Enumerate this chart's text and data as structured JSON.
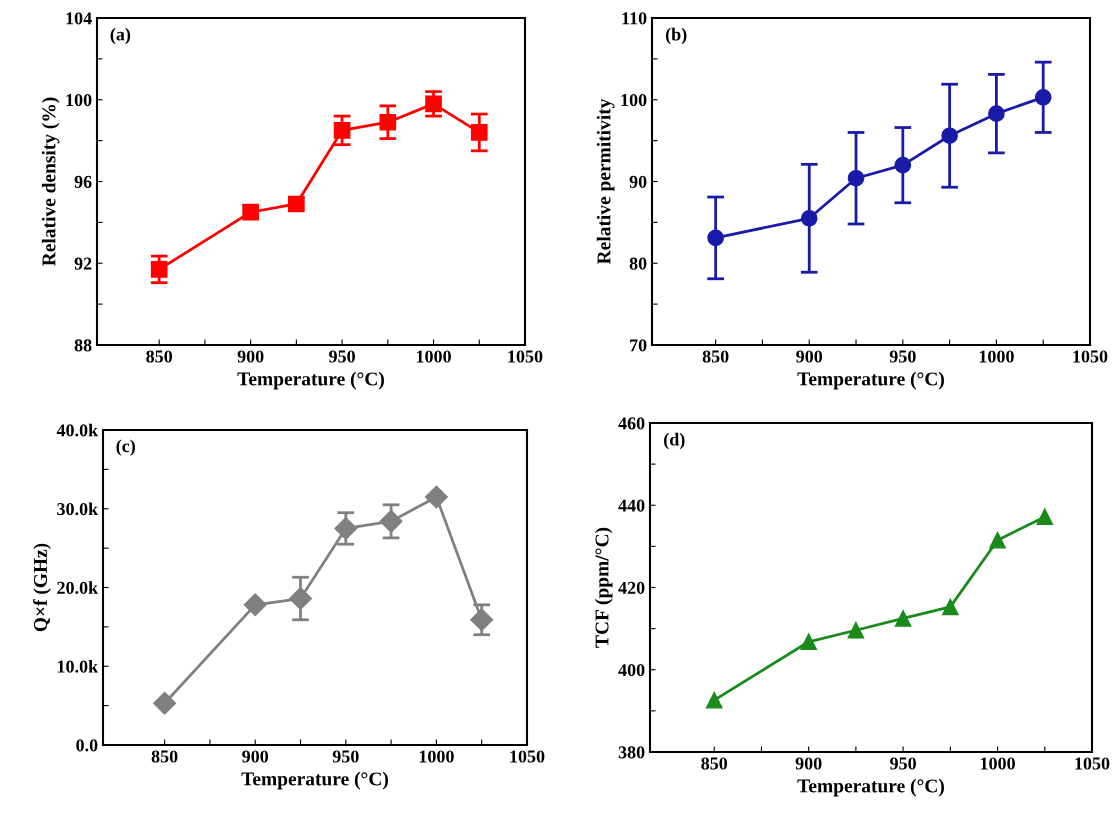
{
  "chart_data": [
    {
      "type": "line",
      "annotations": [
        "(a)"
      ],
      "xlabel": "Temperature (°C)",
      "ylabel": "Relative density (%)",
      "x": [
        850,
        900,
        925,
        950,
        975,
        1000,
        1025
      ],
      "marker": "square",
      "grid": false,
      "series": [
        {
          "color": "#ff0000",
          "values": [
            91.7,
            94.5,
            94.9,
            98.5,
            98.9,
            99.8,
            98.4
          ],
          "errors": [
            0.65,
            null,
            null,
            0.7,
            0.8,
            0.6,
            0.9
          ]
        }
      ],
      "xlim": [
        816,
        1050
      ],
      "xticks": [
        850,
        {
          "value": 875,
          "label": null
        },
        900,
        {
          "value": 925,
          "label": null
        },
        950,
        {
          "value": 975,
          "label": null
        },
        1000,
        {
          "value": 1025,
          "label": null
        },
        1050
      ],
      "ylim": [
        88,
        104
      ],
      "yticks": [
        88,
        {
          "value": 90,
          "label": null
        },
        92,
        {
          "value": 94,
          "label": null
        },
        96,
        {
          "value": 98,
          "label": null
        },
        100,
        {
          "value": 102,
          "label": null
        },
        104
      ]
    },
    {
      "type": "line",
      "annotations": [
        "(b)"
      ],
      "xlabel": "Temperature (°C)",
      "ylabel": "Relative permitivity",
      "x": [
        850,
        900,
        925,
        950,
        975,
        1000,
        1025
      ],
      "marker": "circle",
      "grid": false,
      "series": [
        {
          "color": "#1a1aa8",
          "values": [
            83.1,
            85.5,
            90.4,
            92.0,
            95.6,
            98.3,
            100.3
          ],
          "errors": [
            5.0,
            6.6,
            5.6,
            4.6,
            6.3,
            4.8,
            4.3
          ]
        }
      ],
      "xlim": [
        816,
        1050
      ],
      "xticks": [
        850,
        {
          "value": 875,
          "label": null
        },
        900,
        {
          "value": 925,
          "label": null
        },
        950,
        {
          "value": 975,
          "label": null
        },
        1000,
        {
          "value": 1025,
          "label": null
        },
        1050
      ],
      "ylim": [
        70,
        110
      ],
      "yticks": [
        70,
        {
          "value": 75,
          "label": null
        },
        80,
        {
          "value": 85,
          "label": null
        },
        90,
        {
          "value": 95,
          "label": null
        },
        100,
        {
          "value": 105,
          "label": null
        },
        110
      ]
    },
    {
      "type": "line",
      "annotations": [
        "(c)"
      ],
      "xlabel": "Temperature (°C)",
      "ylabel": "Q×f (GHz)",
      "x": [
        850,
        900,
        925,
        950,
        975,
        1000,
        1025
      ],
      "marker": "diamond",
      "grid": false,
      "series": [
        {
          "color": "#808080",
          "values": [
            5300,
            17800,
            18600,
            27500,
            28400,
            31500,
            15900
          ],
          "errors": [
            null,
            null,
            2700,
            2000,
            2100,
            null,
            1900
          ]
        }
      ],
      "xlim": [
        816,
        1050
      ],
      "xticks": [
        850,
        {
          "value": 875,
          "label": null
        },
        900,
        {
          "value": 925,
          "label": null
        },
        950,
        {
          "value": 975,
          "label": null
        },
        1000,
        {
          "value": 1025,
          "label": null
        },
        1050
      ],
      "ylim": [
        0,
        40000
      ],
      "yticks": [
        {
          "value": 0,
          "label": "0.0"
        },
        {
          "value": 5000,
          "label": null
        },
        {
          "value": 10000,
          "label": "10.0k"
        },
        {
          "value": 15000,
          "label": null
        },
        {
          "value": 20000,
          "label": "20.0k"
        },
        {
          "value": 25000,
          "label": null
        },
        {
          "value": 30000,
          "label": "30.0k"
        },
        {
          "value": 35000,
          "label": null
        },
        {
          "value": 40000,
          "label": "40.0k"
        }
      ]
    },
    {
      "type": "line",
      "annotations": [
        "(d)"
      ],
      "xlabel": "Temperature (°C)",
      "ylabel": "TCF (ppm/°C)",
      "x": [
        850,
        900,
        925,
        950,
        975,
        1000,
        1025
      ],
      "marker": "triangle",
      "grid": false,
      "series": [
        {
          "color": "#1a8a1a",
          "values": [
            392.6,
            406.8,
            409.6,
            412.5,
            415.3,
            431.5,
            437.2
          ]
        }
      ],
      "xlim": [
        816,
        1050
      ],
      "xticks": [
        850,
        {
          "value": 875,
          "label": null
        },
        900,
        {
          "value": 925,
          "label": null
        },
        950,
        {
          "value": 975,
          "label": null
        },
        1000,
        {
          "value": 1025,
          "label": null
        },
        1050
      ],
      "ylim": [
        380,
        460
      ],
      "yticks": [
        380,
        {
          "value": 390,
          "label": null
        },
        400,
        {
          "value": 410,
          "label": null
        },
        420,
        {
          "value": 430,
          "label": null
        },
        440,
        {
          "value": 450,
          "label": null
        },
        460
      ]
    }
  ]
}
